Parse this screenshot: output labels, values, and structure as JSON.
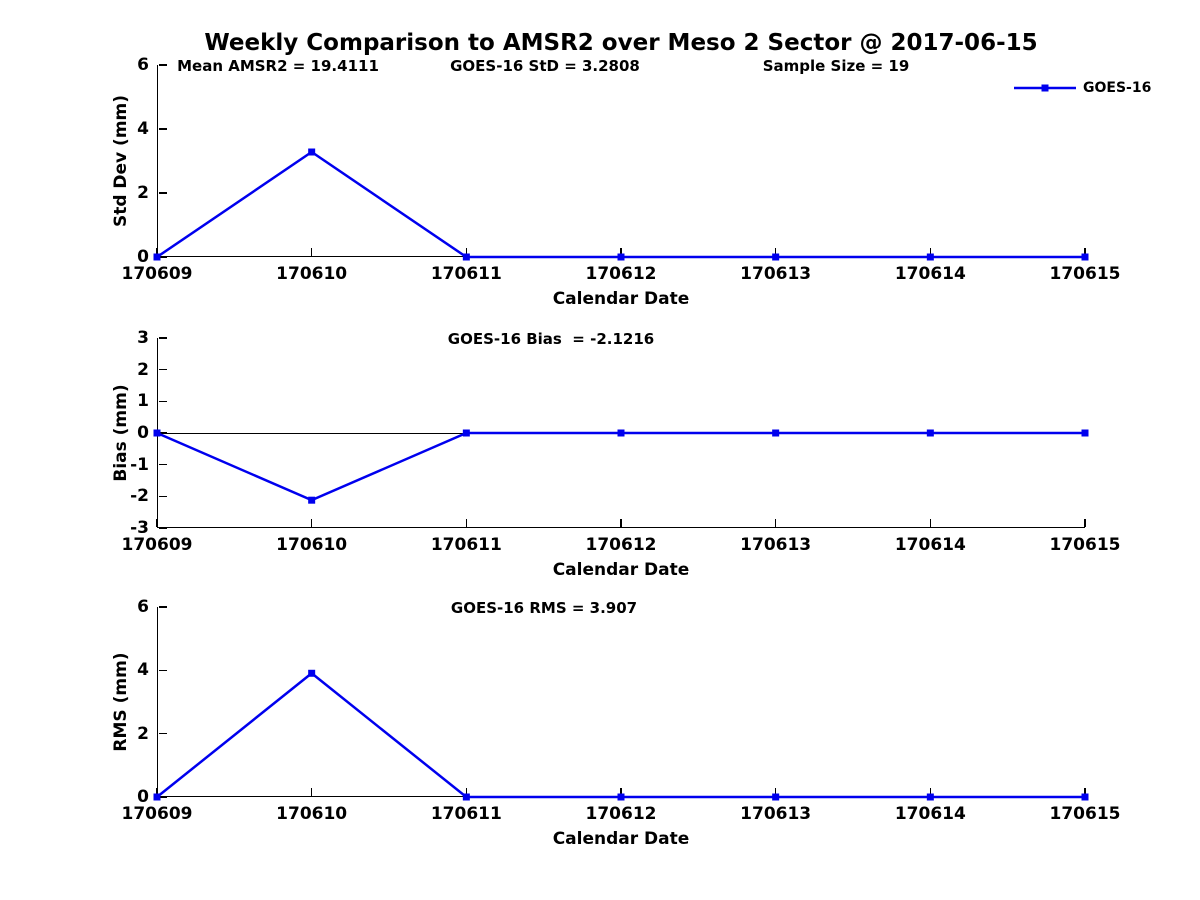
{
  "title": "Weekly Comparison to AMSR2 over Meso 2 Sector @ 2017-06-15",
  "legend": {
    "label": "GOES-16"
  },
  "colors": {
    "line": "#0000EE",
    "axis": "#000000",
    "text": "#000000"
  },
  "chart_data": {
    "type": "line",
    "x_categories": [
      "170609",
      "170610",
      "170611",
      "170612",
      "170613",
      "170614",
      "170615"
    ],
    "xlabel": "Calendar Date",
    "legend_position": "top-right-outside",
    "grid": false,
    "marker": "square",
    "subplots": [
      {
        "name": "std-dev",
        "ylabel": "Std Dev (mm)",
        "ylim": [
          0,
          6
        ],
        "yticks": [
          0,
          2,
          4,
          6
        ],
        "series": [
          {
            "name": "GOES-16",
            "values": [
              0,
              3.2808,
              0,
              0,
              0,
              0,
              0
            ]
          }
        ],
        "annotations": [
          {
            "text": "Mean AMSR2 = 19.4111"
          },
          {
            "text": "GOES-16 StD = 3.2808"
          },
          {
            "text": "Sample Size = 19"
          }
        ]
      },
      {
        "name": "bias",
        "ylabel": "Bias (mm)",
        "ylim": [
          -3,
          3
        ],
        "yticks": [
          -3,
          -2,
          -1,
          0,
          1,
          2,
          3
        ],
        "zero_line": true,
        "series": [
          {
            "name": "GOES-16",
            "values": [
              0,
              -2.1216,
              0,
              0,
              0,
              0,
              0
            ]
          }
        ],
        "annotations": [
          {
            "text": "GOES-16 Bias  = -2.1216"
          }
        ]
      },
      {
        "name": "rms",
        "ylabel": "RMS (mm)",
        "ylim": [
          0,
          6
        ],
        "yticks": [
          0,
          2,
          4,
          6
        ],
        "series": [
          {
            "name": "GOES-16",
            "values": [
              0,
              3.907,
              0,
              0,
              0,
              0,
              0
            ]
          }
        ],
        "annotations": [
          {
            "text": "GOES-16 RMS = 3.907"
          }
        ]
      }
    ]
  }
}
